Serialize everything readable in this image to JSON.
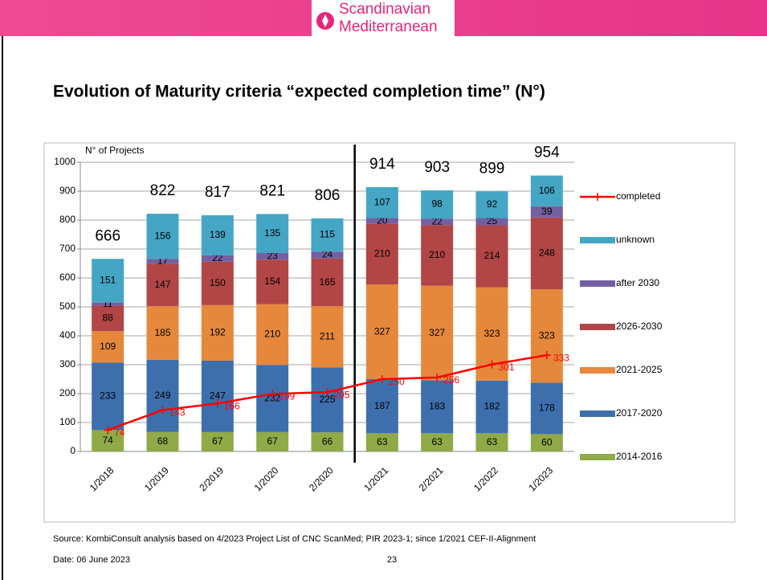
{
  "header": {
    "logo_line1": "Scandinavian",
    "logo_line2": "Mediterranean"
  },
  "chart_data": {
    "type": "bar",
    "stacked": true,
    "title": "Evolution of Maturity criteria “expected completion time” (N°)",
    "y_axis_label": "N° of Projects",
    "categories": [
      "1/2018",
      "1/2019",
      "2/2019",
      "1/2020",
      "2/2020",
      "1/2021",
      "2/2021",
      "1/2022",
      "1/2023"
    ],
    "ylim": [
      0,
      1000
    ],
    "yticks": [
      0,
      100,
      200,
      300,
      400,
      500,
      600,
      700,
      800,
      900,
      1000
    ],
    "grid": true,
    "divider_after_category": 4,
    "totals": [
      666,
      822,
      817,
      821,
      806,
      914,
      903,
      899,
      954
    ],
    "series": [
      {
        "name": "2014-2016",
        "color": "#8faa47",
        "values": [
          74,
          68,
          67,
          67,
          66,
          63,
          63,
          63,
          60
        ]
      },
      {
        "name": "2017-2020",
        "color": "#3e6fad",
        "values": [
          233,
          249,
          247,
          232,
          225,
          187,
          183,
          182,
          178
        ]
      },
      {
        "name": "2021-2025",
        "color": "#e6883b",
        "values": [
          109,
          185,
          192,
          210,
          211,
          327,
          327,
          323,
          323
        ]
      },
      {
        "name": "2026-2030",
        "color": "#b24545",
        "values": [
          88,
          147,
          150,
          154,
          165,
          210,
          210,
          214,
          248
        ]
      },
      {
        "name": "after 2030",
        "color": "#7460a1",
        "values": [
          11,
          17,
          22,
          23,
          24,
          20,
          22,
          25,
          39
        ]
      },
      {
        "name": "unknown",
        "color": "#45a5c4",
        "values": [
          151,
          156,
          139,
          135,
          115,
          107,
          98,
          92,
          106
        ]
      },
      {
        "name": "completed",
        "color": "#ff0000",
        "type": "line",
        "values": [
          74,
          143,
          166,
          199,
          205,
          250,
          256,
          301,
          333
        ]
      }
    ]
  },
  "footer": {
    "source": "Source: KombiConsult analysis based on 4/2023 Project List of CNC ScanMed; PIR 2023-1; since 1/2021 CEF-II-Alignment",
    "date": "Date: 06 June 2023",
    "page": "23"
  }
}
